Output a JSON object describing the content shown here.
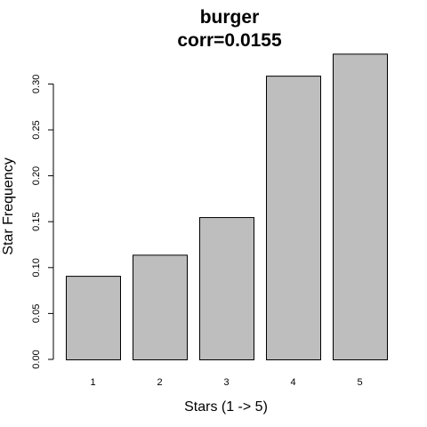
{
  "chart_data": {
    "type": "bar",
    "title": "burger",
    "subtitle": "corr=0.0155",
    "xlabel": "Stars (1 -> 5)",
    "ylabel": "Star Frequency",
    "categories": [
      "1",
      "2",
      "3",
      "4",
      "5"
    ],
    "values": [
      0.091,
      0.114,
      0.155,
      0.309,
      0.333
    ],
    "ylim": [
      0,
      0.33
    ],
    "yticks": [
      "0.00",
      "0.05",
      "0.10",
      "0.15",
      "0.20",
      "0.25",
      "0.30"
    ],
    "ytick_values": [
      0.0,
      0.05,
      0.1,
      0.15,
      0.2,
      0.25,
      0.3
    ],
    "bar_color": "#bebebe",
    "grid": false,
    "legend": "none"
  }
}
